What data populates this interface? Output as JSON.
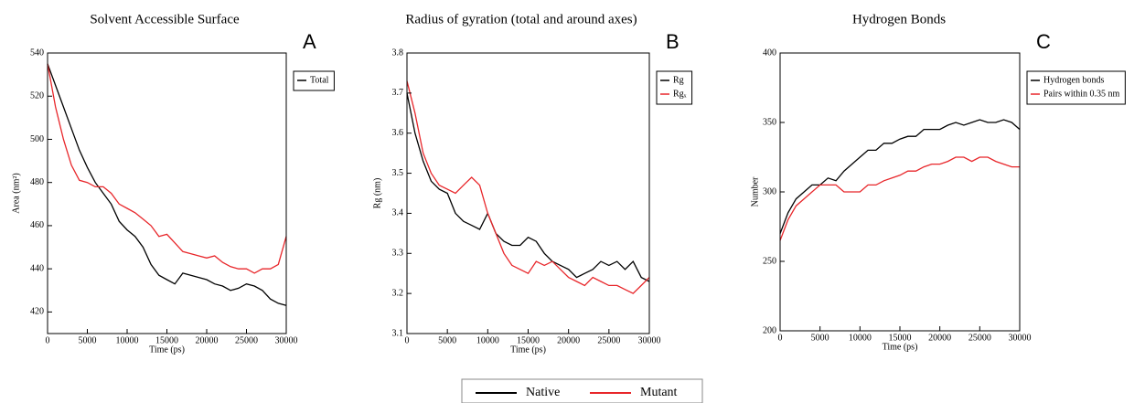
{
  "chart_data": [
    {
      "type": "line",
      "title": "Solvent Accessible Surface",
      "annotation": "A",
      "x_label": "Time (ps)",
      "y_label": "Area (nm²)",
      "x": [
        0,
        1000,
        2000,
        3000,
        4000,
        5000,
        6000,
        7000,
        8000,
        9000,
        10000,
        11000,
        12000,
        13000,
        14000,
        15000,
        16000,
        17000,
        18000,
        19000,
        20000,
        21000,
        22000,
        23000,
        24000,
        25000,
        26000,
        27000,
        28000,
        29000,
        30000
      ],
      "xlim": [
        0,
        30000
      ],
      "xticks": [
        0,
        5000,
        10000,
        15000,
        20000,
        25000,
        30000
      ],
      "ylim": [
        410,
        540
      ],
      "yticks": [
        420,
        440,
        460,
        480,
        500,
        520,
        540
      ],
      "series": [
        {
          "name": "Total",
          "color": "#000000",
          "values": [
            535,
            525,
            515,
            505,
            495,
            487,
            480,
            475,
            470,
            462,
            458,
            455,
            450,
            442,
            437,
            435,
            433,
            438,
            437,
            436,
            435,
            433,
            432,
            430,
            431,
            433,
            432,
            430,
            426,
            424,
            423
          ]
        },
        {
          "color": "#e8262a",
          "values": [
            535,
            515,
            500,
            488,
            481,
            480,
            478,
            478,
            475,
            470,
            468,
            466,
            463,
            460,
            455,
            456,
            452,
            448,
            447,
            446,
            445,
            446,
            443,
            441,
            440,
            440,
            438,
            440,
            440,
            442,
            455
          ]
        }
      ]
    },
    {
      "type": "line",
      "title": "Radius of gyration (total and around axes)",
      "annotation": "B",
      "x_label": "Time (ps)",
      "y_label": "Rg (nm)",
      "x": [
        0,
        1000,
        2000,
        3000,
        4000,
        5000,
        6000,
        7000,
        8000,
        9000,
        10000,
        11000,
        12000,
        13000,
        14000,
        15000,
        16000,
        17000,
        18000,
        19000,
        20000,
        21000,
        22000,
        23000,
        24000,
        25000,
        26000,
        27000,
        28000,
        29000,
        30000
      ],
      "xlim": [
        0,
        30000
      ],
      "xticks": [
        0,
        5000,
        10000,
        15000,
        20000,
        25000,
        30000
      ],
      "ylim": [
        3.1,
        3.8
      ],
      "yticks": [
        3.1,
        3.2,
        3.3,
        3.4,
        3.5,
        3.6,
        3.7,
        3.8
      ],
      "series": [
        {
          "name": "Rg",
          "color": "#000000",
          "values": [
            3.7,
            3.6,
            3.53,
            3.48,
            3.46,
            3.45,
            3.4,
            3.38,
            3.37,
            3.36,
            3.4,
            3.35,
            3.33,
            3.32,
            3.32,
            3.34,
            3.33,
            3.3,
            3.28,
            3.27,
            3.26,
            3.24,
            3.25,
            3.26,
            3.28,
            3.27,
            3.28,
            3.26,
            3.28,
            3.24,
            3.23
          ]
        },
        {
          "name": "Rgₓ",
          "color": "#e8262a",
          "values": [
            3.73,
            3.65,
            3.55,
            3.5,
            3.47,
            3.46,
            3.45,
            3.47,
            3.49,
            3.47,
            3.4,
            3.35,
            3.3,
            3.27,
            3.26,
            3.25,
            3.28,
            3.27,
            3.28,
            3.26,
            3.24,
            3.23,
            3.22,
            3.24,
            3.23,
            3.22,
            3.22,
            3.21,
            3.2,
            3.22,
            3.24
          ]
        }
      ]
    },
    {
      "type": "line",
      "title": "Hydrogen Bonds",
      "annotation": "C",
      "x_label": "Time (ps)",
      "y_label": "Number",
      "x": [
        0,
        1000,
        2000,
        3000,
        4000,
        5000,
        6000,
        7000,
        8000,
        9000,
        10000,
        11000,
        12000,
        13000,
        14000,
        15000,
        16000,
        17000,
        18000,
        19000,
        20000,
        21000,
        22000,
        23000,
        24000,
        25000,
        26000,
        27000,
        28000,
        29000,
        30000
      ],
      "xlim": [
        0,
        30000
      ],
      "xticks": [
        0,
        5000,
        10000,
        15000,
        20000,
        25000,
        30000
      ],
      "ylim": [
        200,
        400
      ],
      "yticks": [
        200,
        250,
        300,
        350,
        400
      ],
      "series": [
        {
          "name": "Hydrogen bonds",
          "color": "#000000",
          "values": [
            270,
            285,
            295,
            300,
            305,
            305,
            310,
            308,
            315,
            320,
            325,
            330,
            330,
            335,
            335,
            338,
            340,
            340,
            345,
            345,
            345,
            348,
            350,
            348,
            350,
            352,
            350,
            350,
            352,
            350,
            345
          ]
        },
        {
          "name": "Pairs within 0.35 nm",
          "color": "#e8262a",
          "values": [
            265,
            280,
            290,
            295,
            300,
            305,
            305,
            305,
            300,
            300,
            300,
            305,
            305,
            308,
            310,
            312,
            315,
            315,
            318,
            320,
            320,
            322,
            325,
            325,
            322,
            325,
            325,
            322,
            320,
            318,
            318
          ]
        }
      ]
    }
  ],
  "shared_legend": [
    {
      "name": "Native",
      "color": "#000000"
    },
    {
      "name": "Mutant",
      "color": "#e8262a"
    }
  ]
}
